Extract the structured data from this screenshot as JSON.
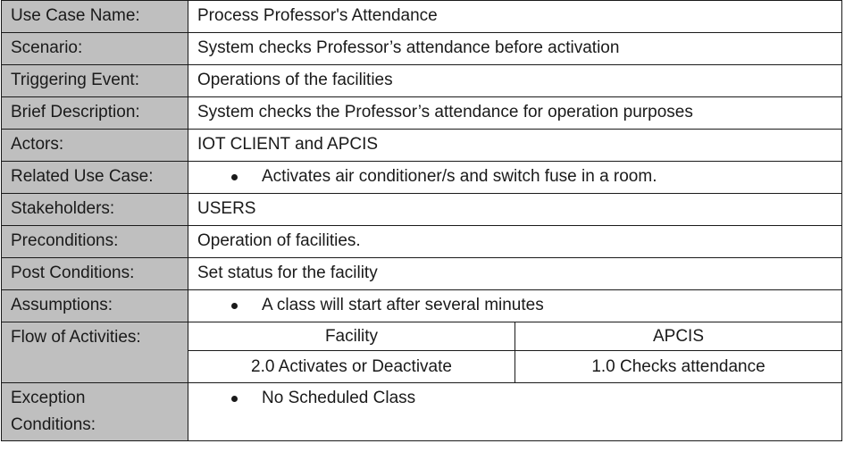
{
  "rows": {
    "use_case_name": {
      "label": "Use Case Name:",
      "value": "Process Professor's Attendance"
    },
    "scenario": {
      "label": "Scenario:",
      "value": "System checks Professor’s attendance before activation"
    },
    "triggering_event": {
      "label": "Triggering Event:",
      "value": "Operations of the facilities"
    },
    "brief_description": {
      "label": "Brief Description:",
      "value": "System checks the Professor’s attendance for operation purposes"
    },
    "actors": {
      "label": "Actors:",
      "value": "IOT CLIENT and APCIS"
    },
    "related_use_case": {
      "label": "Related Use Case:",
      "bullet": "Activates air conditioner/s and switch fuse in a room."
    },
    "stakeholders": {
      "label": "Stakeholders:",
      "value": "USERS"
    },
    "preconditions": {
      "label": "Preconditions:",
      "value": "Operation of facilities."
    },
    "post_conditions": {
      "label": "Post Conditions:",
      "value": "Set status for the facility"
    },
    "assumptions": {
      "label": "Assumptions:",
      "bullet": "A class will start after several minutes"
    },
    "flow_of_activities": {
      "label": "Flow of Activities:",
      "headers": [
        "Facility",
        "APCIS"
      ],
      "steps": [
        "2.0 Activates or Deactivate",
        "1.0 Checks attendance"
      ]
    },
    "exception_conditions": {
      "label_line1": "Exception",
      "label_line2": "Conditions:",
      "bullet": "No Scheduled Class"
    }
  }
}
